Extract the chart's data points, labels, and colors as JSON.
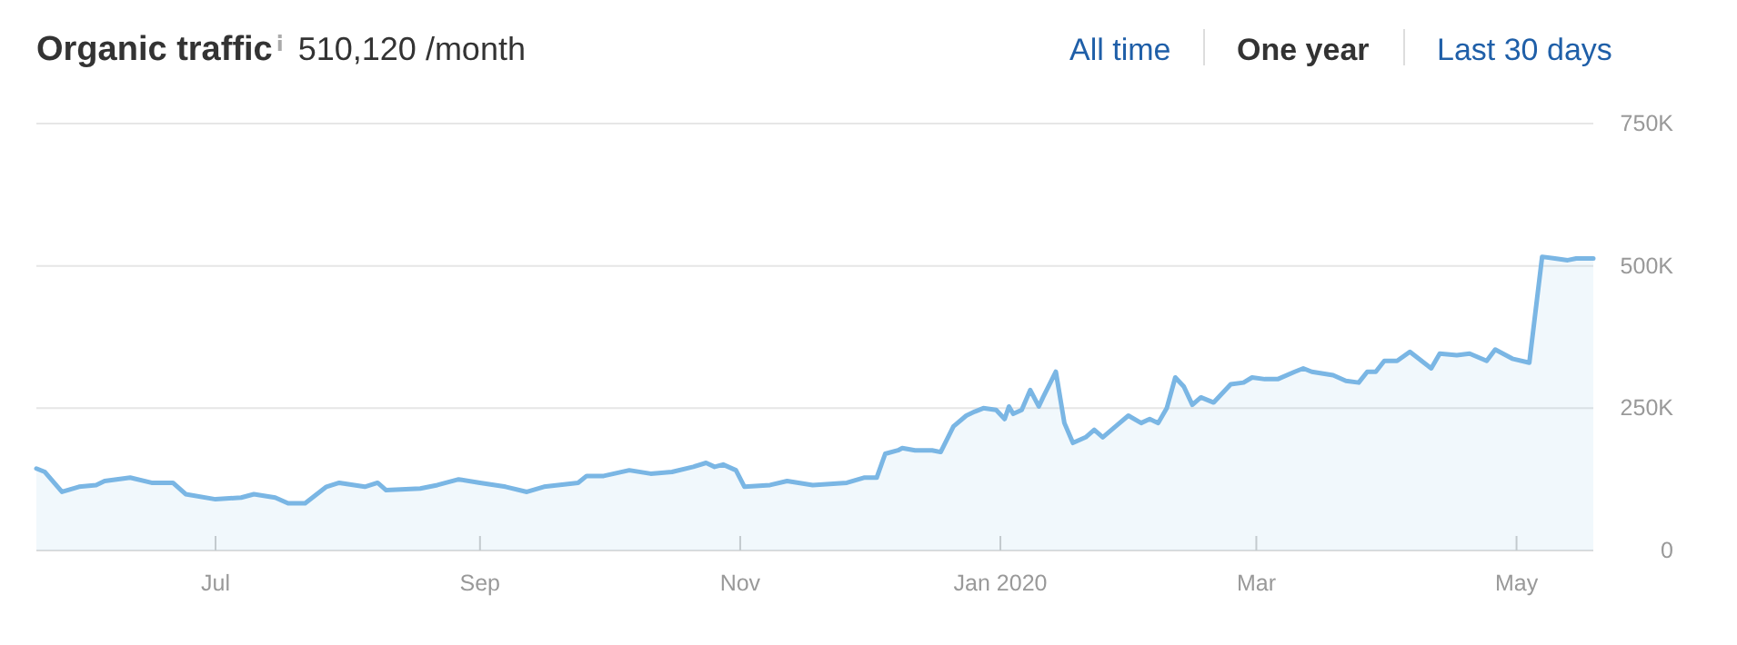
{
  "chart_data": {
    "type": "area",
    "title": "Organic traffic",
    "subtitle": "510,120 /month",
    "annotations": [
      "All time",
      "One year",
      "Last 30 days"
    ],
    "x": [
      "2019-05-20",
      "2019-05-22",
      "2019-05-26",
      "2019-05-30",
      "2019-06-03",
      "2019-06-05",
      "2019-06-11",
      "2019-06-16",
      "2019-06-21",
      "2019-06-24",
      "2019-07-01",
      "2019-07-07",
      "2019-07-10",
      "2019-07-15",
      "2019-07-18",
      "2019-07-22",
      "2019-07-27",
      "2019-07-30",
      "2019-08-05",
      "2019-08-08",
      "2019-08-10",
      "2019-08-18",
      "2019-08-22",
      "2019-08-27",
      "2019-09-01",
      "2019-09-07",
      "2019-09-12",
      "2019-09-16",
      "2019-09-24",
      "2019-09-26",
      "2019-09-30",
      "2019-10-06",
      "2019-10-11",
      "2019-10-16",
      "2019-10-21",
      "2019-10-24",
      "2019-10-26",
      "2019-10-28",
      "2019-10-31",
      "2019-11-02",
      "2019-11-08",
      "2019-11-12",
      "2019-11-18",
      "2019-11-26",
      "2019-11-30",
      "2019-12-01",
      "2019-12-03",
      "2019-12-05",
      "2019-12-08",
      "2019-12-09",
      "2019-12-12",
      "2019-12-16",
      "2019-12-18",
      "2019-12-21",
      "2019-12-24",
      "2019-12-26",
      "2019-12-28",
      "2019-12-31",
      "2020-01-02",
      "2020-01-03",
      "2020-01-04",
      "2020-01-06",
      "2020-01-08",
      "2020-01-10",
      "2020-01-11",
      "2020-01-14",
      "2020-01-16",
      "2020-01-18",
      "2020-01-21",
      "2020-01-23",
      "2020-01-25",
      "2020-01-28",
      "2020-01-31",
      "2020-02-03",
      "2020-02-05",
      "2020-02-07",
      "2020-02-09",
      "2020-02-11",
      "2020-02-13",
      "2020-02-15",
      "2020-02-17",
      "2020-02-20",
      "2020-02-24",
      "2020-02-27",
      "2020-02-29",
      "2020-03-03",
      "2020-03-06",
      "2020-03-10",
      "2020-03-12",
      "2020-03-14",
      "2020-03-19",
      "2020-03-22",
      "2020-03-25",
      "2020-03-27",
      "2020-03-29",
      "2020-03-31",
      "2020-04-03",
      "2020-04-06",
      "2020-04-11",
      "2020-04-13",
      "2020-04-17",
      "2020-04-20",
      "2020-04-24",
      "2020-04-26",
      "2020-04-30",
      "2020-05-04",
      "2020-05-07",
      "2020-05-10",
      "2020-05-13",
      "2020-05-15",
      "2020-05-17",
      "2020-05-19"
    ],
    "series": [
      {
        "color": "#7ab6e4",
        "values": [
          144000,
          138000,
          103000,
          112000,
          115000,
          122000,
          128000,
          119000,
          119000,
          99000,
          90000,
          93000,
          99000,
          93000,
          83000,
          83000,
          112000,
          119000,
          112000,
          119000,
          106000,
          109000,
          115000,
          125000,
          119000,
          112000,
          103000,
          112000,
          119000,
          131000,
          131000,
          141000,
          135000,
          138000,
          147000,
          154000,
          147000,
          151000,
          141000,
          112000,
          115000,
          122000,
          115000,
          119000,
          128000,
          128000,
          128000,
          170000,
          176000,
          180000,
          176000,
          176000,
          173000,
          218000,
          237000,
          244000,
          250000,
          247000,
          231000,
          253000,
          240000,
          247000,
          282000,
          253000,
          269000,
          314000,
          224000,
          189000,
          199000,
          212000,
          199000,
          218000,
          237000,
          224000,
          231000,
          224000,
          250000,
          304000,
          288000,
          256000,
          269000,
          260000,
          292000,
          295000,
          304000,
          301000,
          301000,
          314000,
          320000,
          314000,
          308000,
          298000,
          295000,
          314000,
          314000,
          333000,
          333000,
          349000,
          320000,
          346000,
          343000,
          346000,
          333000,
          353000,
          337000,
          330000,
          516000,
          513000,
          510000,
          513000,
          513000,
          513000
        ]
      }
    ],
    "xlim": [
      "2019-05-20",
      "2020-05-19"
    ],
    "xticks": [
      {
        "value": "2019-07-01",
        "label": "Jul"
      },
      {
        "value": "2019-09-01",
        "label": "Sep"
      },
      {
        "value": "2019-11-01",
        "label": "Nov"
      },
      {
        "value": "2020-01-01",
        "label": "Jan 2020"
      },
      {
        "value": "2020-03-01",
        "label": "Mar"
      },
      {
        "value": "2020-05-01",
        "label": "May"
      }
    ],
    "ylim": [
      0,
      750000
    ],
    "yticks": [
      {
        "value": 0,
        "label": "0"
      },
      {
        "value": 250000,
        "label": "250K"
      },
      {
        "value": 500000,
        "label": "500K"
      },
      {
        "value": 750000,
        "label": "750K"
      }
    ],
    "grid": "y",
    "marker": "none",
    "line_style": "solid"
  }
}
